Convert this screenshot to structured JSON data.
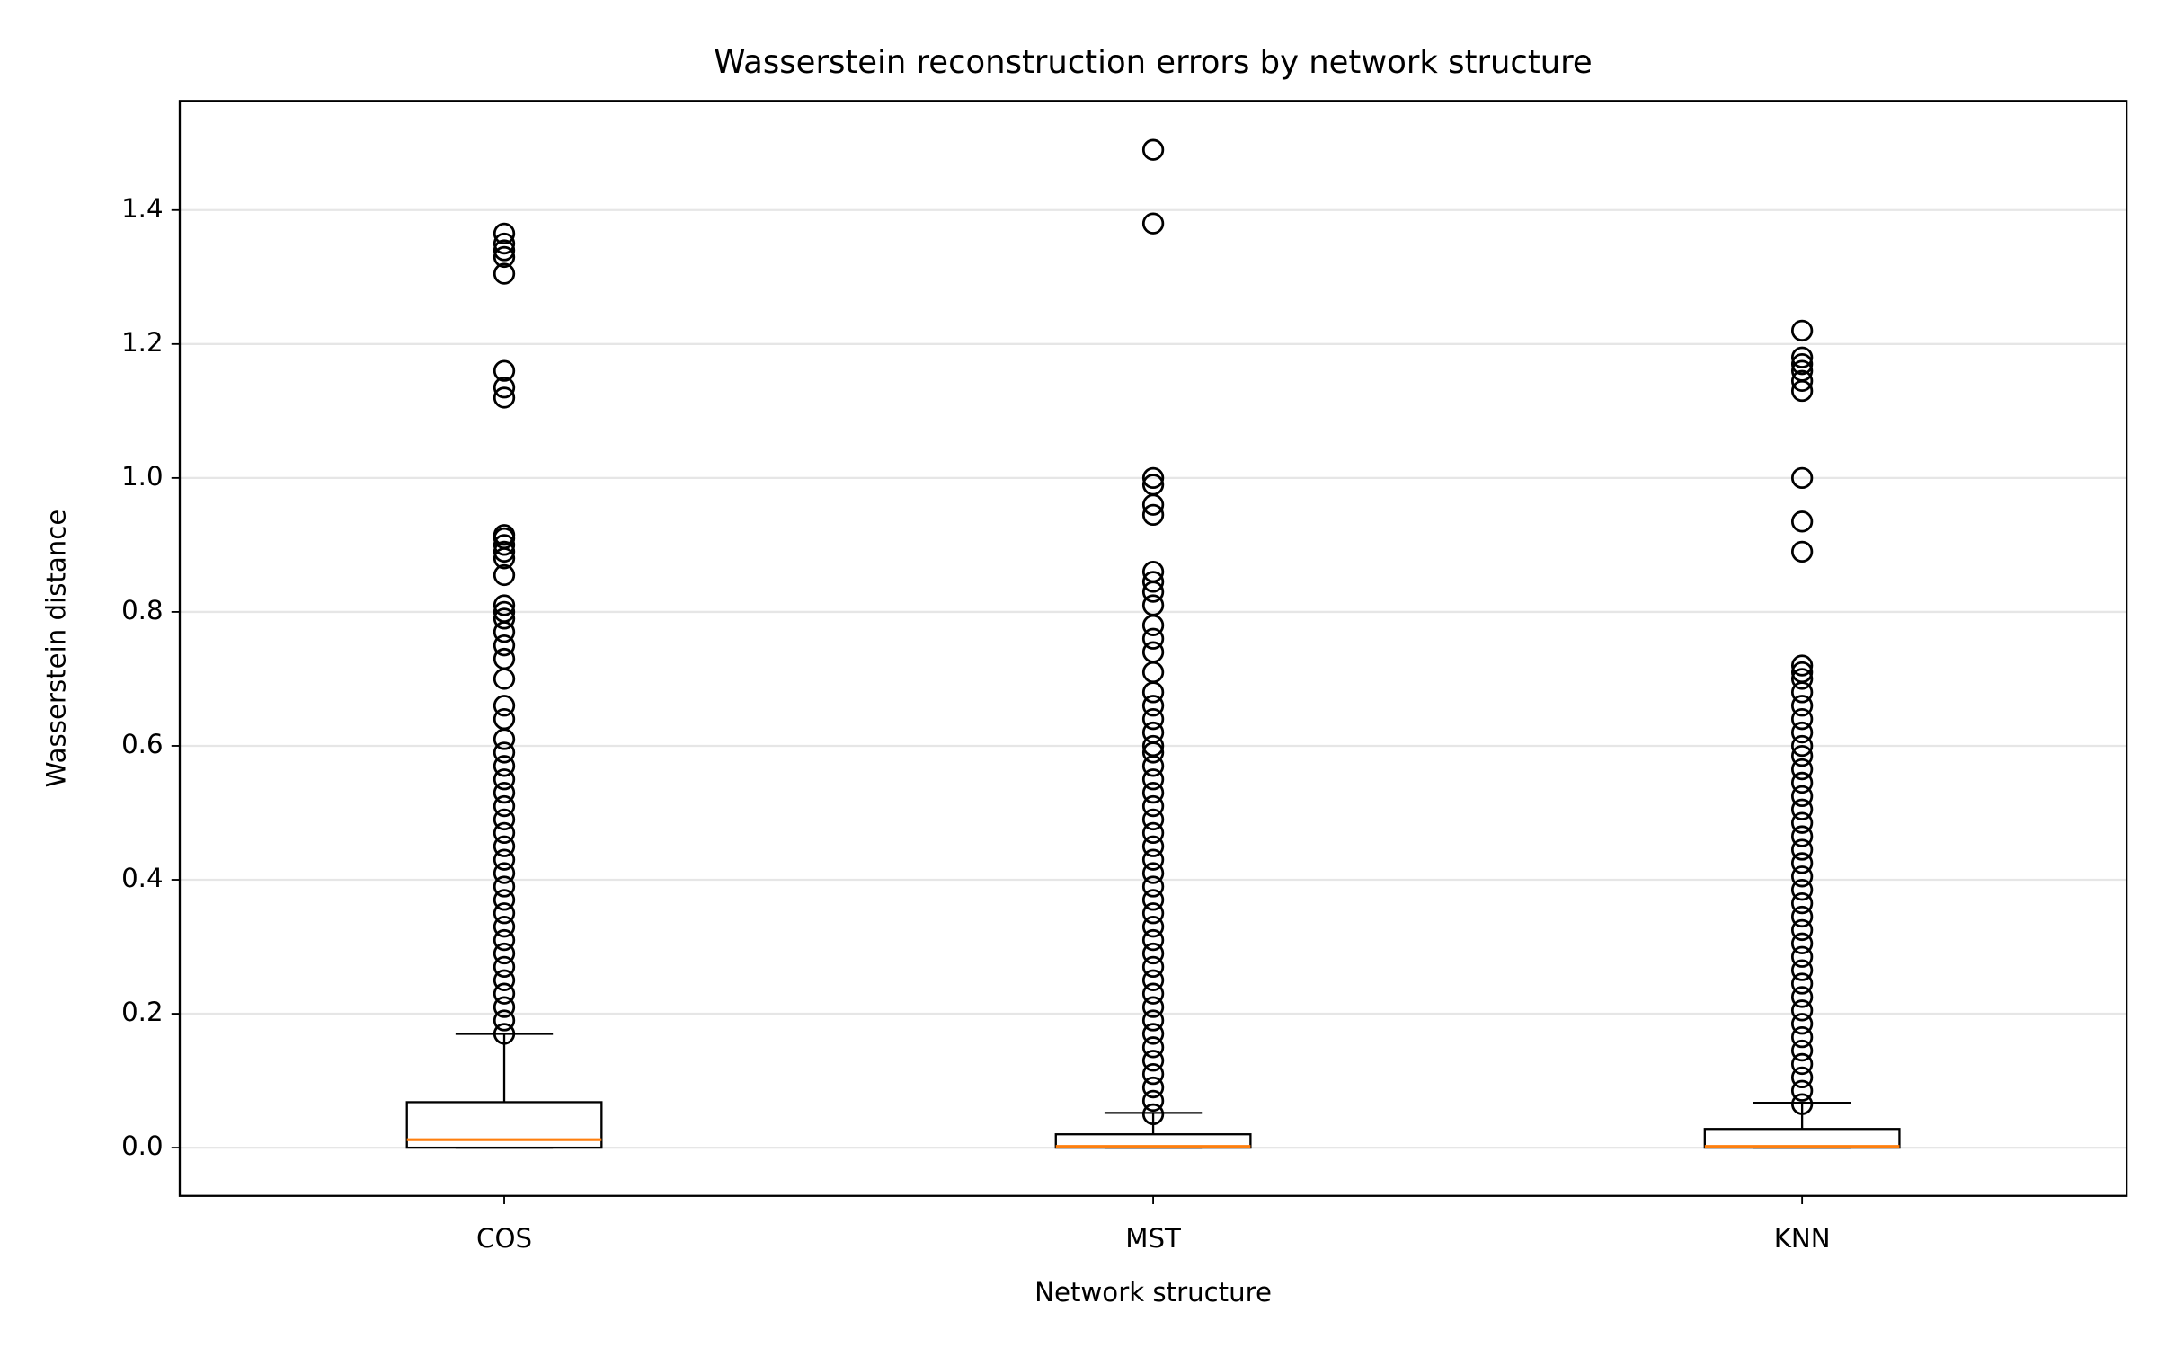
{
  "chart_data": {
    "type": "box",
    "title": "Wasserstein reconstruction errors by network structure",
    "xlabel": "Network structure",
    "ylabel": "Wasserstein distance",
    "categories": [
      "COS",
      "MST",
      "KNN"
    ],
    "ylim": [
      -0.072,
      1.563
    ],
    "yticks": [
      {
        "value": 0,
        "label": "0.0"
      },
      0.2,
      0.4,
      0.6,
      0.8,
      {
        "value": 1,
        "label": "1.0"
      },
      1.2,
      1.4
    ],
    "grid": true,
    "box_color": "#000000",
    "median_color": "#ff7f0e",
    "boxes": [
      {
        "min": 0,
        "q1": 0,
        "median": 0.012,
        "q3": 0.068,
        "max": 0.17,
        "outliers": [
          0.17,
          0.19,
          0.21,
          0.23,
          0.25,
          0.27,
          0.29,
          0.31,
          0.33,
          0.35,
          0.37,
          0.39,
          0.41,
          0.43,
          0.45,
          0.47,
          0.49,
          0.51,
          0.53,
          0.55,
          0.57,
          0.59,
          0.61,
          0.64,
          0.66,
          0.7,
          0.73,
          0.75,
          0.77,
          0.79,
          0.8,
          0.81,
          0.855,
          0.88,
          0.89,
          0.9,
          0.91,
          0.915,
          1.12,
          1.135,
          1.16,
          1.305,
          1.33,
          1.34,
          1.35,
          1.365
        ]
      },
      {
        "min": 0,
        "q1": 0,
        "median": 0.002,
        "q3": 0.02,
        "max": 0.052,
        "outliers": [
          0.05,
          0.07,
          0.09,
          0.11,
          0.13,
          0.15,
          0.17,
          0.19,
          0.21,
          0.23,
          0.25,
          0.27,
          0.29,
          0.31,
          0.33,
          0.35,
          0.37,
          0.39,
          0.41,
          0.43,
          0.45,
          0.47,
          0.49,
          0.51,
          0.53,
          0.55,
          0.57,
          0.59,
          0.6,
          0.62,
          0.64,
          0.66,
          0.68,
          0.71,
          0.74,
          0.76,
          0.78,
          0.81,
          0.83,
          0.845,
          0.86,
          0.945,
          0.96,
          0.99,
          1.0,
          1.38,
          1.49
        ]
      },
      {
        "min": 0,
        "q1": 0,
        "median": 0.002,
        "q3": 0.028,
        "max": 0.067,
        "outliers": [
          0.065,
          0.085,
          0.105,
          0.125,
          0.145,
          0.165,
          0.185,
          0.205,
          0.225,
          0.245,
          0.265,
          0.285,
          0.305,
          0.325,
          0.345,
          0.365,
          0.385,
          0.405,
          0.425,
          0.445,
          0.465,
          0.485,
          0.505,
          0.525,
          0.545,
          0.565,
          0.585,
          0.6,
          0.62,
          0.64,
          0.66,
          0.68,
          0.7,
          0.71,
          0.72,
          0.89,
          0.935,
          1.0,
          1.13,
          1.145,
          1.16,
          1.17,
          1.18,
          1.22
        ]
      }
    ]
  }
}
